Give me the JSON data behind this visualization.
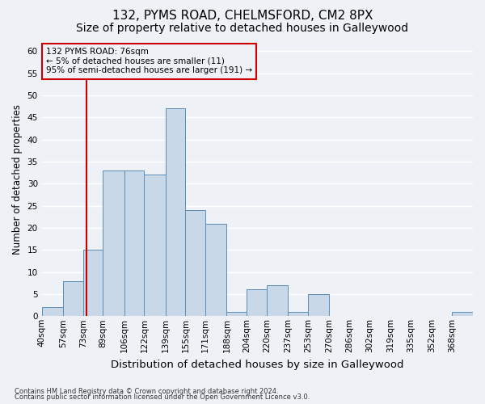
{
  "title1": "132, PYMS ROAD, CHELMSFORD, CM2 8PX",
  "title2": "Size of property relative to detached houses in Galleywood",
  "xlabel": "Distribution of detached houses by size in Galleywood",
  "ylabel": "Number of detached properties",
  "bin_labels": [
    "40sqm",
    "57sqm",
    "73sqm",
    "89sqm",
    "106sqm",
    "122sqm",
    "139sqm",
    "155sqm",
    "171sqm",
    "188sqm",
    "204sqm",
    "220sqm",
    "237sqm",
    "253sqm",
    "270sqm",
    "286sqm",
    "302sqm",
    "319sqm",
    "335sqm",
    "352sqm",
    "368sqm"
  ],
  "bar_heights": [
    2,
    8,
    15,
    33,
    33,
    32,
    47,
    24,
    21,
    1,
    6,
    7,
    1,
    5,
    0,
    0,
    0,
    0,
    0,
    0,
    1
  ],
  "bin_edges": [
    40,
    57,
    73,
    89,
    106,
    122,
    139,
    155,
    171,
    188,
    204,
    220,
    237,
    253,
    270,
    286,
    302,
    319,
    335,
    352,
    368,
    385
  ],
  "bar_color": "#c8d8e8",
  "bar_edge_color": "#5b8db8",
  "vline_x": 76,
  "vline_color": "#cc0000",
  "annotation_box_text": "132 PYMS ROAD: 76sqm\n← 5% of detached houses are smaller (11)\n95% of semi-detached houses are larger (191) →",
  "annotation_box_color": "#cc0000",
  "ylim": [
    0,
    62
  ],
  "yticks": [
    0,
    5,
    10,
    15,
    20,
    25,
    30,
    35,
    40,
    45,
    50,
    55,
    60
  ],
  "footer1": "Contains HM Land Registry data © Crown copyright and database right 2024.",
  "footer2": "Contains public sector information licensed under the Open Government Licence v3.0.",
  "background_color": "#eef2f7",
  "grid_color": "#ffffff",
  "title1_fontsize": 11,
  "title2_fontsize": 10,
  "tick_fontsize": 7.5,
  "ylabel_fontsize": 8.5,
  "xlabel_fontsize": 9.5,
  "footer_fontsize": 6.0
}
